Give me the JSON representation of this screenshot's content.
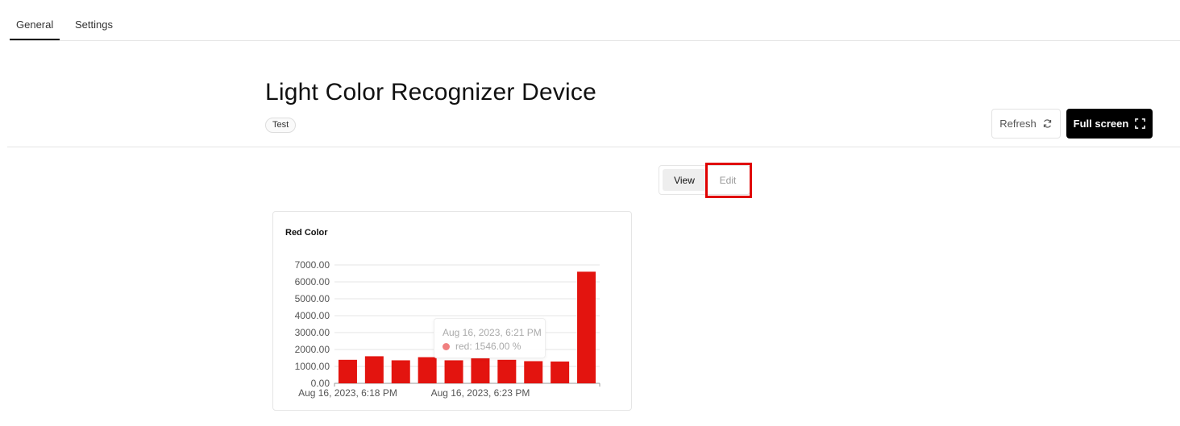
{
  "tabs": [
    {
      "label": "General",
      "active": true
    },
    {
      "label": "Settings",
      "active": false
    }
  ],
  "header": {
    "title": "Light Color Recognizer Device",
    "tag": "Test",
    "refresh_label": "Refresh",
    "fullscreen_label": "Full screen"
  },
  "mode_toggle": {
    "view_label": "View",
    "edit_label": "Edit",
    "selected": "View"
  },
  "widget": {
    "title": "Red Color",
    "tooltip": {
      "title": "Aug 16, 2023, 6:21 PM",
      "series": "red",
      "value_text": "red: 1546.00 %"
    }
  },
  "colors": {
    "bar": "#e3140f",
    "highlight": "#e00000",
    "primary_button": "#000000"
  },
  "chart_data": {
    "type": "bar",
    "title": "Red Color",
    "xlabel": "",
    "ylabel": "",
    "ylim": [
      0,
      7000
    ],
    "ytick_labels": [
      "0.00",
      "1000.00",
      "2000.00",
      "3000.00",
      "4000.00",
      "5000.00",
      "6000.00",
      "7000.00"
    ],
    "ytick_values": [
      0,
      1000,
      2000,
      3000,
      4000,
      5000,
      6000,
      7000
    ],
    "xtick_labels": [
      {
        "label": "Aug 16, 2023, 6:18 PM",
        "index": 0.5
      },
      {
        "label": "Aug 16, 2023, 6:23 PM",
        "index": 5.5
      }
    ],
    "series": [
      {
        "name": "red",
        "values": [
          1390,
          1600,
          1360,
          1546,
          1360,
          1480,
          1390,
          1310,
          1290,
          6600
        ]
      }
    ],
    "grid": true,
    "legend": "none"
  }
}
